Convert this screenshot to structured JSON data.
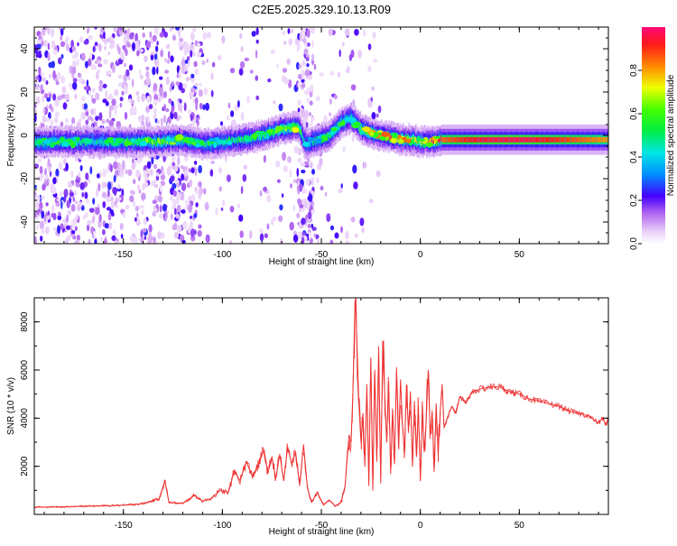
{
  "chart_data": [
    {
      "type": "heatmap",
      "title": "C2E5.2025.329.10.13.R09",
      "xlabel": "Height of straight line (km)",
      "ylabel": "Frequency (Hz)",
      "xlim": [
        -195,
        95
      ],
      "ylim": [
        -50,
        50
      ],
      "xticks": [
        -150,
        -100,
        -50,
        0,
        50
      ],
      "xtick_labels": [
        "-150",
        "-100",
        "-50",
        "0",
        "50"
      ],
      "yticks": [
        -40,
        -20,
        0,
        20,
        40
      ],
      "ytick_labels": [
        "-40",
        "-20",
        "0",
        "20",
        "40"
      ],
      "signal_trace": {
        "x": [
          -195,
          -180,
          -165,
          -150,
          -135,
          -120,
          -110,
          -100,
          -90,
          -80,
          -70,
          -62,
          -58,
          -52,
          -46,
          -40,
          -35,
          -30,
          -25,
          -20,
          -15,
          -10,
          -5,
          0,
          5,
          10,
          30,
          50,
          70,
          95
        ],
        "freq_hz": [
          -3,
          -3,
          -3,
          -3,
          -3,
          -2,
          -4,
          -3,
          -2,
          0,
          3,
          4,
          -4,
          -2,
          0,
          6,
          8,
          3,
          1,
          0,
          -1,
          -2,
          -2,
          -3,
          -3,
          -2,
          -2,
          -2,
          -2,
          -2
        ],
        "amplitude": [
          0.45,
          0.55,
          0.45,
          0.5,
          0.6,
          0.55,
          0.5,
          0.45,
          0.5,
          0.5,
          0.6,
          0.65,
          0.4,
          0.45,
          0.5,
          0.55,
          0.45,
          0.55,
          0.7,
          0.75,
          0.8,
          0.75,
          0.7,
          0.7,
          0.8,
          0.85,
          0.95,
          0.97,
          0.9,
          0.8
        ]
      },
      "colorbar": {
        "label": "Normalized spectral amplitude",
        "range": [
          0.0,
          1.0
        ],
        "ticks": [
          0.0,
          0.2,
          0.4,
          0.6,
          0.8
        ],
        "tick_labels": [
          "0.0",
          "0.2",
          "0.4",
          "0.6",
          "0.8"
        ]
      }
    },
    {
      "type": "line",
      "xlabel": "Height of straight line (km)",
      "ylabel": "SNR (10 * v/v)",
      "xlim": [
        -195,
        95
      ],
      "ylim": [
        0,
        9000
      ],
      "xticks": [
        -150,
        -100,
        -50,
        0,
        50
      ],
      "xtick_labels": [
        "-150",
        "-100",
        "-50",
        "0",
        "50"
      ],
      "yticks": [
        2000,
        4000,
        6000,
        8000
      ],
      "ytick_labels": [
        "2000",
        "4000",
        "6000",
        "8000"
      ],
      "series": [
        {
          "name": "SNR",
          "color": "#ee3333",
          "x": [
            -195,
            -180,
            -165,
            -150,
            -140,
            -132,
            -129,
            -127,
            -120,
            -114,
            -110,
            -106,
            -101,
            -97,
            -94,
            -91,
            -88,
            -85,
            -82,
            -79,
            -77,
            -75,
            -73,
            -71,
            -69,
            -67,
            -65,
            -63,
            -61,
            -59,
            -57,
            -55,
            -52,
            -49,
            -46,
            -43,
            -40,
            -38,
            -36,
            -35,
            -34,
            -33,
            -32.5,
            -32,
            -31,
            -30,
            -29,
            -28,
            -27,
            -26,
            -25,
            -24,
            -23,
            -22,
            -21,
            -20,
            -19,
            -18,
            -17,
            -16,
            -15,
            -14,
            -13,
            -12,
            -11,
            -10,
            -9,
            -8,
            -7,
            -6,
            -5,
            -4,
            -3,
            -2,
            -1,
            0,
            1,
            2,
            3,
            4,
            5,
            6,
            7,
            8,
            9,
            10,
            11,
            12,
            14,
            16,
            18,
            20,
            23,
            26,
            30,
            35,
            40,
            45,
            50,
            55,
            60,
            65,
            70,
            75,
            80,
            85,
            88,
            90,
            92,
            94,
            95
          ],
          "values": [
            300,
            320,
            350,
            380,
            450,
            650,
            1400,
            500,
            450,
            800,
            550,
            650,
            1000,
            900,
            1800,
            1400,
            2200,
            1600,
            2000,
            2700,
            1700,
            2400,
            1500,
            2500,
            1400,
            2800,
            2100,
            2600,
            1200,
            2900,
            1100,
            500,
            900,
            400,
            600,
            350,
            500,
            1200,
            3300,
            3000,
            5200,
            8900,
            8500,
            7000,
            4500,
            3000,
            4200,
            2000,
            5400,
            1200,
            6500,
            1000,
            6000,
            2200,
            6800,
            1300,
            7200,
            5000,
            3000,
            5500,
            1700,
            4300,
            2100,
            6100,
            2800,
            5600,
            3700,
            2600,
            5400,
            3400,
            5100,
            2000,
            4700,
            2400,
            4500,
            1400,
            4200,
            2600,
            3900,
            6000,
            3300,
            4300,
            1900,
            4600,
            2500,
            4200,
            5400,
            3600,
            4100,
            4500,
            4200,
            4900,
            4600,
            5100,
            5200,
            5300,
            5300,
            5100,
            5000,
            4800,
            4700,
            4600,
            4500,
            4300,
            4200,
            4100,
            3900,
            3800,
            4000,
            3700,
            4000
          ]
        }
      ]
    }
  ]
}
